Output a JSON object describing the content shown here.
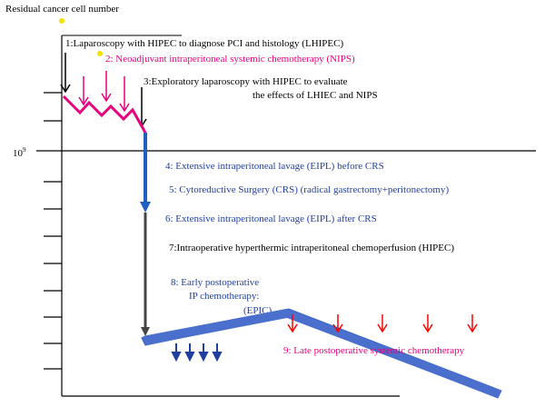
{
  "y_axis_label": "Residual cancer cell number",
  "y_tick_label": "10",
  "y_tick_exponent": "9",
  "steps": {
    "s1": "1:Laparoscopy with HIPEC to diagnose PCI and histology (LHIPEC)",
    "s2": "2: Neoadjuvant intraperitoneal systemic chemotherapy (NIPS)",
    "s3_line1": "3:Exploratory laparoscopy with HIPEC to evaluate",
    "s3_line2": "the effects of LHIEC and NIPS",
    "s4": "4: Extensive intraperitoneal lavage (EIPL) before CRS",
    "s5": "5: Cytoreductive Surgery (CRS) (radical gastrectomy+peritonectomy)",
    "s6": "6: Extensive intraperitoneal lavage (EIPL) after CRS",
    "s7_prefix": "7:Intraoperative ",
    "s7_rest": "hyperthermic intraperitoneal chemoperfusion  (HIPEC)",
    "s8_line1": "8: Early postoperative",
    "s8_line2": "IP chemotherapy:",
    "s8_line3": "(EPIC)",
    "s9_line1": "9: Late postoperative",
    "s9_line2": "systemic chemotherapy"
  },
  "colors": {
    "black": "#000000",
    "pink": "#e6007e",
    "blue": "#1f3fa0",
    "bright_blue": "#1565c0",
    "dark_gray": "#404040",
    "red": "#ff0000",
    "yellow_dot": "#f5e100"
  }
}
